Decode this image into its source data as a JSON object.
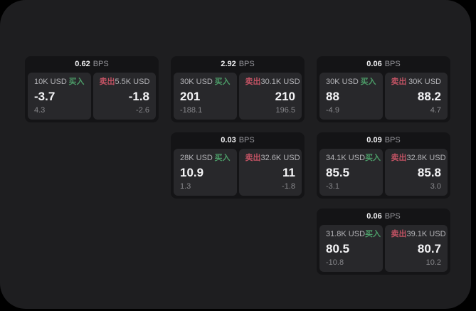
{
  "labels": {
    "bps": "BPS",
    "buy": "买入",
    "sell": "卖出"
  },
  "colors": {
    "background": "#000000",
    "panel": "#1e1e20",
    "card": "#141416",
    "pane": "#28282b",
    "buy_accent": "#4c9c68",
    "sell_accent": "#c05263",
    "value_text": "#f4f4f6",
    "muted_text": "#87878b"
  },
  "cards": [
    {
      "spread": "0.62",
      "buy": {
        "size": "10K USD",
        "price": "-3.7",
        "sub": "4.3"
      },
      "sell": {
        "size": "5.5K USD",
        "price": "-1.8",
        "sub": "-2.6"
      }
    },
    {
      "spread": "2.92",
      "buy": {
        "size": "30K USD",
        "price": "201",
        "sub": "-188.1"
      },
      "sell": {
        "size": "30.1K USD",
        "price": "210",
        "sub": "196.5"
      }
    },
    {
      "spread": "0.06",
      "buy": {
        "size": "30K USD",
        "price": "88",
        "sub": "-4.9"
      },
      "sell": {
        "size": "30K USD",
        "price": "88.2",
        "sub": "4.7"
      }
    },
    {
      "spread": "0.03",
      "buy": {
        "size": "28K USD",
        "price": "10.9",
        "sub": "1.3"
      },
      "sell": {
        "size": "32.6K USD",
        "price": "11",
        "sub": "-1.8"
      }
    },
    {
      "spread": "0.09",
      "buy": {
        "size": "34.1K USD",
        "price": "85.5",
        "sub": "-3.1"
      },
      "sell": {
        "size": "32.8K USD",
        "price": "85.8",
        "sub": "3.0"
      }
    },
    {
      "spread": "0.06",
      "buy": {
        "size": "31.8K USD",
        "price": "80.5",
        "sub": "-10.8"
      },
      "sell": {
        "size": "39.1K USD",
        "price": "80.7",
        "sub": "10.2"
      }
    }
  ]
}
